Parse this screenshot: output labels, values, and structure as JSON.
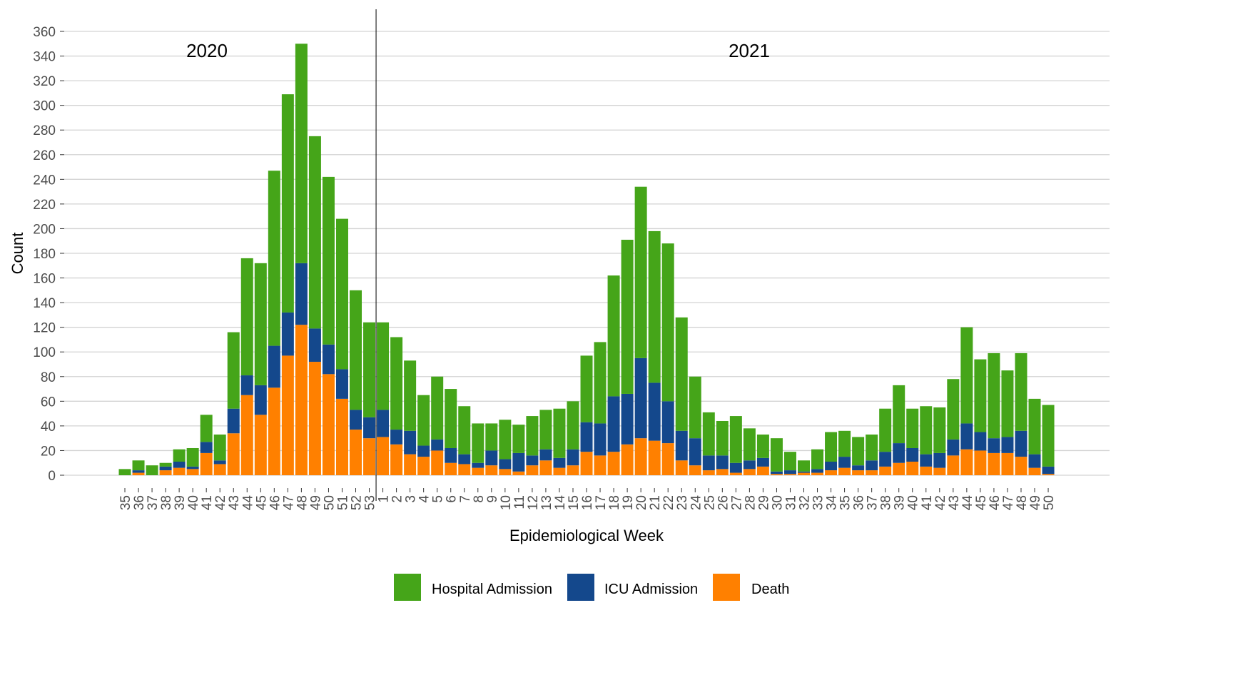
{
  "chart_data": {
    "type": "bar",
    "stacked": true,
    "title": "",
    "xlabel": "Epidemiological Week",
    "ylabel": "Count",
    "ylim": [
      0,
      360
    ],
    "yticks": [
      0,
      20,
      40,
      60,
      80,
      100,
      120,
      140,
      160,
      180,
      200,
      220,
      240,
      260,
      280,
      300,
      320,
      340,
      360
    ],
    "grid": "horizontal",
    "legend_position": "bottom",
    "year_annotations": [
      {
        "label": "2020",
        "first_week_index": 0
      },
      {
        "label": "2021",
        "first_week_index": 19
      }
    ],
    "categories": [
      "35",
      "36",
      "37",
      "38",
      "39",
      "40",
      "41",
      "42",
      "43",
      "44",
      "45",
      "46",
      "47",
      "48",
      "49",
      "50",
      "51",
      "52",
      "53",
      "1",
      "2",
      "3",
      "4",
      "5",
      "6",
      "7",
      "8",
      "9",
      "10",
      "11",
      "12",
      "13",
      "14",
      "15",
      "16",
      "17",
      "18",
      "19",
      "20",
      "21",
      "22",
      "23",
      "24",
      "25",
      "26",
      "27",
      "28",
      "29",
      "30",
      "31",
      "32",
      "33",
      "34",
      "35",
      "36",
      "37",
      "38",
      "39",
      "40",
      "41",
      "42",
      "43",
      "44",
      "45",
      "46",
      "47",
      "48",
      "49",
      "50"
    ],
    "series": [
      {
        "name": "Death",
        "color": "#FF8000",
        "values": [
          0,
          2,
          0,
          4,
          6,
          5,
          18,
          9,
          34,
          65,
          49,
          71,
          97,
          122,
          92,
          82,
          62,
          37,
          30,
          31,
          25,
          17,
          15,
          20,
          10,
          9,
          6,
          8,
          5,
          3,
          8,
          12,
          6,
          8,
          19,
          16,
          19,
          25,
          30,
          28,
          26,
          12,
          8,
          4,
          5,
          2,
          5,
          7,
          1,
          1,
          2,
          2,
          4,
          6,
          4,
          4,
          7,
          10,
          11,
          7,
          6,
          16,
          21,
          20,
          18,
          18,
          15,
          6,
          1
        ]
      },
      {
        "name": "ICU Admission",
        "color": "#14488C",
        "values": [
          0,
          2,
          0,
          3,
          5,
          2,
          9,
          3,
          20,
          16,
          24,
          34,
          35,
          50,
          27,
          24,
          24,
          16,
          17,
          22,
          12,
          19,
          9,
          9,
          12,
          8,
          4,
          12,
          8,
          15,
          8,
          9,
          8,
          13,
          24,
          26,
          45,
          41,
          65,
          47,
          34,
          24,
          22,
          12,
          11,
          8,
          7,
          7,
          2,
          3,
          1,
          3,
          7,
          9,
          4,
          8,
          12,
          16,
          11,
          10,
          12,
          13,
          21,
          15,
          12,
          13,
          21,
          11,
          6
        ]
      },
      {
        "name": "Hospital Admission",
        "color": "#45A519",
        "values": [
          5,
          8,
          8,
          3,
          10,
          15,
          22,
          21,
          62,
          95,
          99,
          142,
          177,
          178,
          156,
          136,
          122,
          97,
          77,
          71,
          75,
          57,
          41,
          51,
          48,
          39,
          32,
          22,
          32,
          23,
          32,
          32,
          40,
          39,
          54,
          66,
          98,
          125,
          139,
          123,
          128,
          92,
          50,
          35,
          28,
          38,
          26,
          19,
          27,
          15,
          9,
          16,
          24,
          21,
          23,
          21,
          35,
          47,
          32,
          39,
          37,
          49,
          78,
          59,
          69,
          54,
          63,
          45,
          50
        ]
      }
    ],
    "legend": [
      "Hospital Admission",
      "ICU Admission",
      "Death"
    ]
  }
}
